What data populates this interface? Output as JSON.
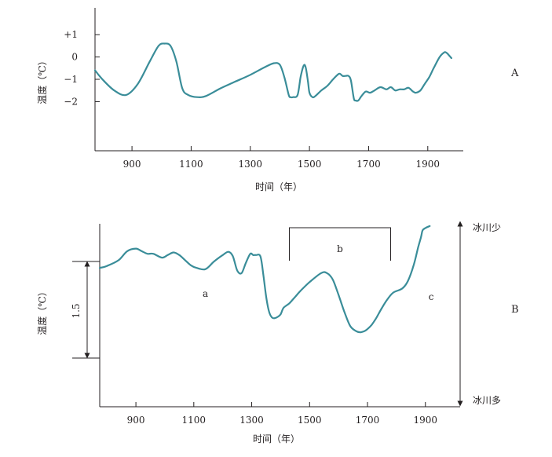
{
  "chart_data": [
    {
      "type": "line",
      "panel_label": "A",
      "xlabel": "时间（年）",
      "ylabel": "温度（℃）",
      "x_ticks": [
        {
          "value": 900,
          "label": "900"
        },
        {
          "value": 1100,
          "label": "1100"
        },
        {
          "value": 1300,
          "label": "1300"
        },
        {
          "value": 1500,
          "label": "1500"
        },
        {
          "value": 1700,
          "label": "1700"
        },
        {
          "value": 1900,
          "label": "1900"
        }
      ],
      "y_ticks": [
        {
          "value": 1,
          "label": "+1"
        },
        {
          "value": 0,
          "label": "0"
        },
        {
          "value": -1,
          "label": "−1"
        },
        {
          "value": -2,
          "label": "−2"
        }
      ],
      "xlim": [
        775,
        2020
      ],
      "ylim": [
        -4.2,
        2.2
      ],
      "line_color": "#3a8d99",
      "series": [
        {
          "x": [
            775,
            800,
            840,
            880,
            920,
            960,
            990,
            1010,
            1030,
            1050,
            1070,
            1090,
            1120,
            1150,
            1200,
            1250,
            1300,
            1350,
            1380,
            1400,
            1415,
            1430,
            1436,
            1445,
            1460,
            1470,
            1480,
            1487,
            1495,
            1500,
            1510,
            1520,
            1540,
            1560,
            1580,
            1600,
            1612,
            1622,
            1632,
            1640,
            1650,
            1656,
            1665,
            1676,
            1690,
            1705,
            1720,
            1740,
            1760,
            1775,
            1790,
            1805,
            1820,
            1835,
            1850,
            1860,
            1875,
            1890,
            1905,
            1920,
            1940,
            1955,
            1962,
            1970,
            1980
          ],
          "y": [
            -0.6,
            -1.0,
            -1.5,
            -1.7,
            -1.2,
            -0.2,
            0.5,
            0.6,
            0.5,
            -0.2,
            -1.4,
            -1.7,
            -1.8,
            -1.75,
            -1.4,
            -1.1,
            -0.8,
            -0.45,
            -0.28,
            -0.35,
            -0.9,
            -1.7,
            -1.8,
            -1.8,
            -1.7,
            -0.9,
            -0.4,
            -0.45,
            -1.1,
            -1.6,
            -1.8,
            -1.75,
            -1.5,
            -1.3,
            -1.0,
            -0.75,
            -0.85,
            -0.85,
            -0.85,
            -1.05,
            -1.85,
            -1.95,
            -1.95,
            -1.75,
            -1.55,
            -1.6,
            -1.5,
            -1.35,
            -1.45,
            -1.35,
            -1.5,
            -1.45,
            -1.45,
            -1.38,
            -1.55,
            -1.6,
            -1.5,
            -1.2,
            -0.9,
            -0.5,
            0.0,
            0.2,
            0.2,
            0.1,
            -0.05
          ]
        }
      ]
    },
    {
      "type": "line",
      "panel_label": "B",
      "xlabel": "时间（年）",
      "ylabel": "温度（℃）",
      "scale_bar_label": "1.5",
      "scale_bar_span": 1.5,
      "x_ticks": [
        {
          "value": 900,
          "label": "900"
        },
        {
          "value": 1100,
          "label": "1100"
        },
        {
          "value": 1300,
          "label": "1300"
        },
        {
          "value": 1500,
          "label": "1500"
        },
        {
          "value": 1700,
          "label": "1700"
        },
        {
          "value": 1900,
          "label": "1900"
        }
      ],
      "xlim": [
        775,
        2020
      ],
      "ylim": [
        0,
        2.8
      ],
      "line_color": "#3a8d99",
      "right_axis": {
        "top_label": "冰川少",
        "bottom_label": "冰川多"
      },
      "bracket": {
        "label": "b",
        "x_start": 1430,
        "x_end": 1780
      },
      "annotations": [
        {
          "text": "a",
          "x": 1140,
          "y": 0.95
        },
        {
          "text": "c",
          "x": 1920,
          "y": 0.9
        }
      ],
      "series": [
        {
          "x": [
            775,
            800,
            840,
            870,
            900,
            920,
            940,
            960,
            990,
            1010,
            1030,
            1050,
            1070,
            1090,
            1110,
            1140,
            1170,
            1200,
            1220,
            1235,
            1250,
            1265,
            1280,
            1295,
            1305,
            1315,
            1330,
            1340,
            1350,
            1360,
            1370,
            1380,
            1390,
            1400,
            1410,
            1430,
            1450,
            1470,
            1500,
            1540,
            1560,
            1580,
            1600,
            1620,
            1640,
            1660,
            1675,
            1690,
            1700,
            1715,
            1730,
            1750,
            1770,
            1790,
            1820,
            1840,
            1860,
            1875,
            1885,
            1890,
            1900,
            1915
          ],
          "y": [
            1.4,
            1.43,
            1.52,
            1.66,
            1.7,
            1.66,
            1.62,
            1.62,
            1.56,
            1.6,
            1.64,
            1.6,
            1.52,
            1.44,
            1.4,
            1.38,
            1.5,
            1.6,
            1.65,
            1.58,
            1.36,
            1.32,
            1.48,
            1.62,
            1.6,
            1.6,
            1.58,
            1.3,
            0.95,
            0.72,
            0.63,
            0.62,
            0.64,
            0.68,
            0.78,
            0.85,
            0.95,
            1.05,
            1.18,
            1.32,
            1.32,
            1.22,
            0.98,
            0.72,
            0.5,
            0.42,
            0.4,
            0.42,
            0.45,
            0.52,
            0.62,
            0.78,
            0.92,
            1.02,
            1.08,
            1.2,
            1.45,
            1.72,
            1.88,
            1.98,
            2.02,
            2.05
          ]
        }
      ]
    }
  ]
}
